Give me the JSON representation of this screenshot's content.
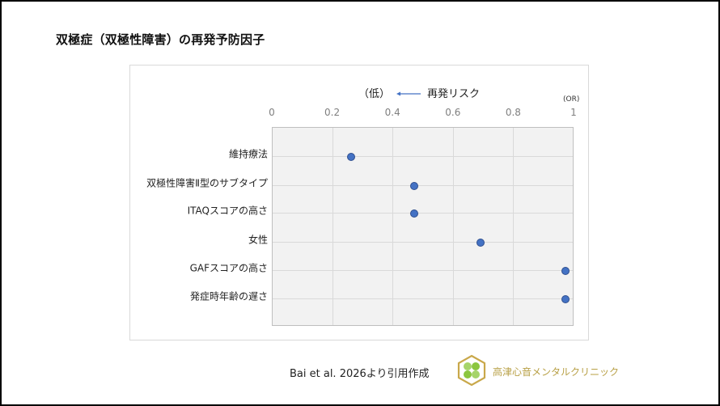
{
  "page": {
    "title": "双極症（双極性障害）の再発予防因子"
  },
  "chart_data": {
    "type": "scatter",
    "title": "双極症（双極性障害）の再発予防因子",
    "annotation": {
      "low_label": "（低）",
      "risk_label": "再発リスク",
      "unit_label": "(OR)"
    },
    "xlabel": "OR",
    "ylabel": "",
    "xlim": [
      0,
      1
    ],
    "x_ticks": [
      "0",
      "0.2",
      "0.4",
      "0.6",
      "0.8",
      "1"
    ],
    "x_axis_position": "top",
    "grid": true,
    "legend": null,
    "categories": [
      "維持療法",
      "双極性障害Ⅱ型のサブタイプ",
      "ITAQスコアの高さ",
      "女性",
      "GAFスコアの高さ",
      "発症時年齢の遅さ"
    ],
    "values": [
      0.26,
      0.47,
      0.47,
      0.69,
      0.97,
      0.97
    ],
    "marker_color": "#4472c4"
  },
  "footer": {
    "source": "Bai et al. 2026より引用作成",
    "clinic_name": "高津心音メンタルクリニック",
    "logo_icon": "clover-hexagon-logo"
  },
  "colors": {
    "plot_background": "#f2f2f2",
    "gridline": "#d9d9d9",
    "marker": "#4472c4",
    "arrow": "#4472c4",
    "clinic_text": "#b8a046",
    "logo_border": "#c9a84a",
    "logo_leaf": "#8cc63f"
  }
}
